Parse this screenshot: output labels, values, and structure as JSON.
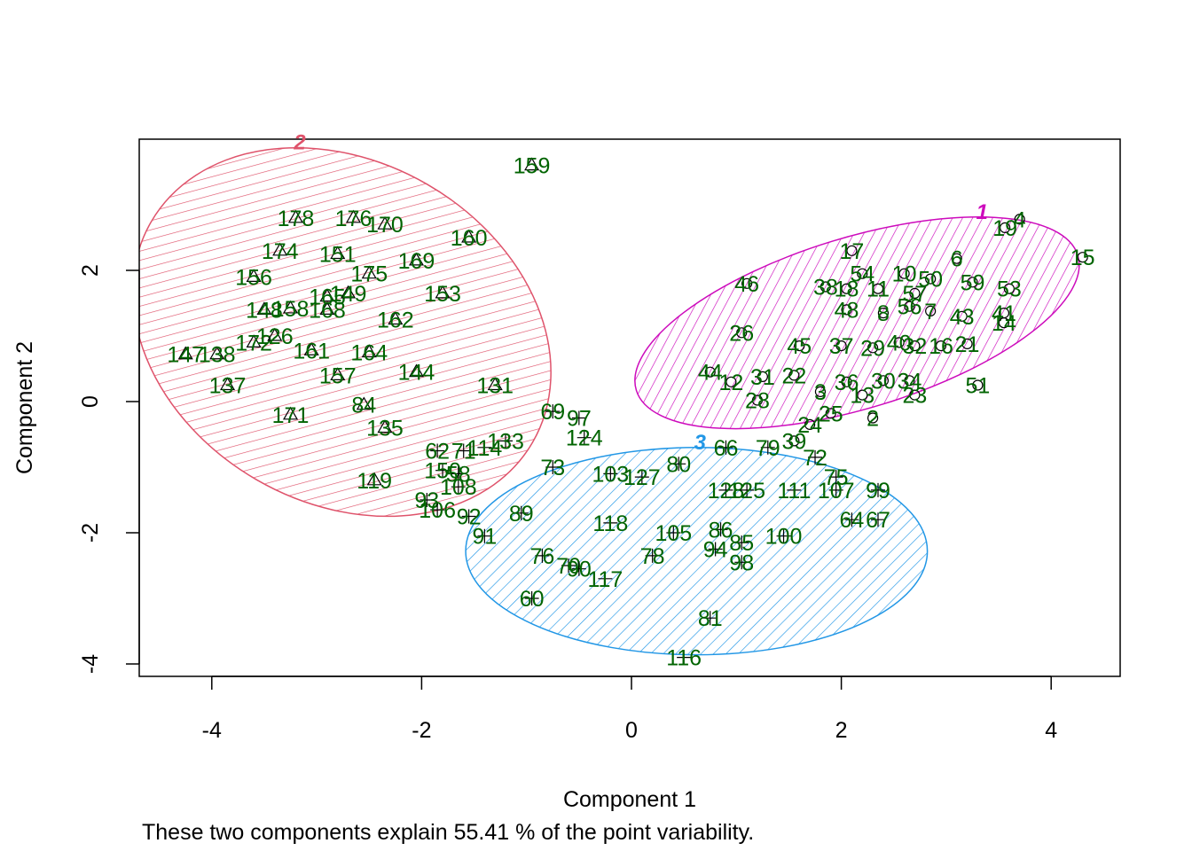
{
  "chart_data": {
    "type": "scatter",
    "title": "",
    "xlabel": "Component 1",
    "ylabel": "Component 2",
    "caption": "These two components explain 55.41 % of the point variability.",
    "xlim": [
      -4.7,
      4.7
    ],
    "ylim": [
      -4.2,
      4.1
    ],
    "xticks": [
      -4,
      -2,
      0,
      2,
      4
    ],
    "yticks": [
      -4,
      -2,
      0,
      2
    ],
    "grid": false,
    "colors": {
      "points": "#006400",
      "cluster1": "#CD0BBC",
      "cluster2": "#DF536B",
      "cluster3": "#2297E6",
      "axis": "#000000"
    },
    "clusters": [
      {
        "label": "1",
        "marker": "circle",
        "center": [
          2.15,
          1.2
        ],
        "rx": 2.2,
        "ry": 1.3,
        "angle_deg": 17,
        "color": "#CD0BBC"
      },
      {
        "label": "2",
        "marker": "triangle",
        "center": [
          -2.76,
          1.06
        ],
        "rx": 2.1,
        "ry": 2.6,
        "angle_deg": -30,
        "color": "#DF536B"
      },
      {
        "label": "3",
        "marker": "plus",
        "center": [
          0.62,
          -2.28
        ],
        "rx": 2.2,
        "ry": 1.58,
        "angle_deg": 0,
        "color": "#2297E6"
      }
    ],
    "points": [
      {
        "id": "4",
        "x": 3.7,
        "y": 2.78,
        "c": 1
      },
      {
        "id": "19",
        "x": 3.56,
        "y": 2.65,
        "c": 1
      },
      {
        "id": "15",
        "x": 4.3,
        "y": 2.2,
        "c": 1
      },
      {
        "id": "17",
        "x": 2.1,
        "y": 2.3,
        "c": 1
      },
      {
        "id": "6",
        "x": 3.1,
        "y": 2.18,
        "c": 1
      },
      {
        "id": "46",
        "x": 1.1,
        "y": 1.8,
        "c": 1
      },
      {
        "id": "54",
        "x": 2.2,
        "y": 1.95,
        "c": 1
      },
      {
        "id": "10",
        "x": 2.6,
        "y": 1.95,
        "c": 1
      },
      {
        "id": "50",
        "x": 2.85,
        "y": 1.87,
        "c": 1
      },
      {
        "id": "59",
        "x": 3.25,
        "y": 1.82,
        "c": 1
      },
      {
        "id": "53",
        "x": 3.6,
        "y": 1.72,
        "c": 1
      },
      {
        "id": "38",
        "x": 1.85,
        "y": 1.75,
        "c": 1
      },
      {
        "id": "18",
        "x": 2.05,
        "y": 1.72,
        "c": 1
      },
      {
        "id": "11",
        "x": 2.35,
        "y": 1.72,
        "c": 1
      },
      {
        "id": "57",
        "x": 2.7,
        "y": 1.65,
        "c": 1
      },
      {
        "id": "43",
        "x": 3.15,
        "y": 1.3,
        "c": 1
      },
      {
        "id": "41",
        "x": 3.55,
        "y": 1.35,
        "c": 1
      },
      {
        "id": "14",
        "x": 3.55,
        "y": 1.2,
        "c": 1
      },
      {
        "id": "48",
        "x": 2.05,
        "y": 1.4,
        "c": 1
      },
      {
        "id": "8",
        "x": 2.4,
        "y": 1.35,
        "c": 1
      },
      {
        "id": "56",
        "x": 2.65,
        "y": 1.45,
        "c": 1
      },
      {
        "id": "7",
        "x": 2.85,
        "y": 1.38,
        "c": 1
      },
      {
        "id": "26",
        "x": 1.05,
        "y": 1.05,
        "c": 1
      },
      {
        "id": "45",
        "x": 1.6,
        "y": 0.85,
        "c": 1
      },
      {
        "id": "37",
        "x": 2.0,
        "y": 0.85,
        "c": 1
      },
      {
        "id": "29",
        "x": 2.3,
        "y": 0.82,
        "c": 1
      },
      {
        "id": "40",
        "x": 2.55,
        "y": 0.9,
        "c": 1
      },
      {
        "id": "32",
        "x": 2.7,
        "y": 0.85,
        "c": 1
      },
      {
        "id": "16",
        "x": 2.95,
        "y": 0.85,
        "c": 1
      },
      {
        "id": "21",
        "x": 3.2,
        "y": 0.88,
        "c": 1
      },
      {
        "id": "44",
        "x": 0.75,
        "y": 0.45,
        "c": 1
      },
      {
        "id": "12",
        "x": 0.95,
        "y": 0.3,
        "c": 1
      },
      {
        "id": "31",
        "x": 1.25,
        "y": 0.38,
        "c": 1
      },
      {
        "id": "22",
        "x": 1.55,
        "y": 0.4,
        "c": 1
      },
      {
        "id": "36",
        "x": 2.05,
        "y": 0.3,
        "c": 1
      },
      {
        "id": "30",
        "x": 2.4,
        "y": 0.32,
        "c": 1
      },
      {
        "id": "34",
        "x": 2.65,
        "y": 0.32,
        "c": 1
      },
      {
        "id": "51",
        "x": 3.3,
        "y": 0.25,
        "c": 1
      },
      {
        "id": "3",
        "x": 1.8,
        "y": 0.15,
        "c": 1
      },
      {
        "id": "13",
        "x": 2.2,
        "y": 0.1,
        "c": 1
      },
      {
        "id": "23",
        "x": 2.7,
        "y": 0.1,
        "c": 1
      },
      {
        "id": "28",
        "x": 1.2,
        "y": 0.02,
        "c": 1
      },
      {
        "id": "25",
        "x": 1.9,
        "y": -0.18,
        "c": 1
      },
      {
        "id": "2",
        "x": 2.3,
        "y": -0.25,
        "c": 1
      },
      {
        "id": "24",
        "x": 1.7,
        "y": -0.35,
        "c": 1
      },
      {
        "id": "39",
        "x": 1.55,
        "y": -0.6,
        "c": 1
      },
      {
        "id": "159",
        "x": -0.95,
        "y": 3.6,
        "c": 2
      },
      {
        "id": "178",
        "x": -3.2,
        "y": 2.8,
        "c": 2
      },
      {
        "id": "176",
        "x": -2.65,
        "y": 2.8,
        "c": 2
      },
      {
        "id": "170",
        "x": -2.35,
        "y": 2.7,
        "c": 2
      },
      {
        "id": "160",
        "x": -1.55,
        "y": 2.5,
        "c": 2
      },
      {
        "id": "174",
        "x": -3.35,
        "y": 2.3,
        "c": 2
      },
      {
        "id": "151",
        "x": -2.8,
        "y": 2.25,
        "c": 2
      },
      {
        "id": "169",
        "x": -2.05,
        "y": 2.15,
        "c": 2
      },
      {
        "id": "156",
        "x": -3.6,
        "y": 1.9,
        "c": 2
      },
      {
        "id": "175",
        "x": -2.5,
        "y": 1.95,
        "c": 2
      },
      {
        "id": "165",
        "x": -2.9,
        "y": 1.6,
        "c": 2
      },
      {
        "id": "149",
        "x": -2.7,
        "y": 1.65,
        "c": 2
      },
      {
        "id": "153",
        "x": -1.8,
        "y": 1.65,
        "c": 2
      },
      {
        "id": "148",
        "x": -3.5,
        "y": 1.4,
        "c": 2
      },
      {
        "id": "158",
        "x": -3.25,
        "y": 1.42,
        "c": 2
      },
      {
        "id": "168",
        "x": -2.9,
        "y": 1.4,
        "c": 2
      },
      {
        "id": "162",
        "x": -2.25,
        "y": 1.25,
        "c": 2
      },
      {
        "id": "172",
        "x": -3.6,
        "y": 0.9,
        "c": 2
      },
      {
        "id": "126",
        "x": -3.4,
        "y": 1.0,
        "c": 2
      },
      {
        "id": "147",
        "x": -4.25,
        "y": 0.72,
        "c": 2
      },
      {
        "id": "138",
        "x": -3.95,
        "y": 0.72,
        "c": 2
      },
      {
        "id": "161",
        "x": -3.05,
        "y": 0.78,
        "c": 2
      },
      {
        "id": "164",
        "x": -2.5,
        "y": 0.75,
        "c": 2
      },
      {
        "id": "157",
        "x": -2.8,
        "y": 0.4,
        "c": 2
      },
      {
        "id": "144",
        "x": -2.05,
        "y": 0.45,
        "c": 2
      },
      {
        "id": "137",
        "x": -3.85,
        "y": 0.25,
        "c": 2
      },
      {
        "id": "131",
        "x": -1.3,
        "y": 0.25,
        "c": 2
      },
      {
        "id": "84",
        "x": -2.55,
        "y": -0.05,
        "c": 2
      },
      {
        "id": "171",
        "x": -3.25,
        "y": -0.2,
        "c": 2
      },
      {
        "id": "135",
        "x": -2.35,
        "y": -0.4,
        "c": 2
      },
      {
        "id": "119",
        "x": -2.45,
        "y": -1.2,
        "c": 2
      },
      {
        "id": "69",
        "x": -0.75,
        "y": -0.15,
        "c": 3
      },
      {
        "id": "97",
        "x": -0.5,
        "y": -0.25,
        "c": 3
      },
      {
        "id": "124",
        "x": -0.45,
        "y": -0.55,
        "c": 3
      },
      {
        "id": "133",
        "x": -1.2,
        "y": -0.6,
        "c": 3
      },
      {
        "id": "114",
        "x": -1.4,
        "y": -0.7,
        "c": 3
      },
      {
        "id": "62",
        "x": -1.85,
        "y": -0.75,
        "c": 3
      },
      {
        "id": "71",
        "x": -1.6,
        "y": -0.75,
        "c": 3
      },
      {
        "id": "73",
        "x": -0.75,
        "y": -1.0,
        "c": 3
      },
      {
        "id": "80",
        "x": 0.45,
        "y": -0.95,
        "c": 3
      },
      {
        "id": "103",
        "x": -0.2,
        "y": -1.1,
        "c": 3
      },
      {
        "id": "127",
        "x": 0.1,
        "y": -1.15,
        "c": 3
      },
      {
        "id": "150",
        "x": -1.8,
        "y": -1.05,
        "c": 3
      },
      {
        "id": "58",
        "x": -1.65,
        "y": -1.1,
        "c": 3
      },
      {
        "id": "108",
        "x": -1.65,
        "y": -1.3,
        "c": 3
      },
      {
        "id": "93",
        "x": -1.95,
        "y": -1.5,
        "c": 3
      },
      {
        "id": "106",
        "x": -1.85,
        "y": -1.65,
        "c": 3
      },
      {
        "id": "92",
        "x": -1.55,
        "y": -1.75,
        "c": 3
      },
      {
        "id": "89",
        "x": -1.05,
        "y": -1.7,
        "c": 3
      },
      {
        "id": "91",
        "x": -1.4,
        "y": -2.05,
        "c": 3
      },
      {
        "id": "128",
        "x": 0.9,
        "y": -1.35,
        "c": 3
      },
      {
        "id": "125",
        "x": 1.1,
        "y": -1.35,
        "c": 3
      },
      {
        "id": "111",
        "x": 1.55,
        "y": -1.35,
        "c": 3
      },
      {
        "id": "107",
        "x": 1.95,
        "y": -1.35,
        "c": 3
      },
      {
        "id": "99",
        "x": 2.35,
        "y": -1.35,
        "c": 3
      },
      {
        "id": "75",
        "x": 1.95,
        "y": -1.15,
        "c": 3
      },
      {
        "id": "66",
        "x": 0.9,
        "y": -0.7,
        "c": 3
      },
      {
        "id": "79",
        "x": 1.3,
        "y": -0.7,
        "c": 3
      },
      {
        "id": "72",
        "x": 1.75,
        "y": -0.85,
        "c": 3
      },
      {
        "id": "64",
        "x": 2.1,
        "y": -1.8,
        "c": 3
      },
      {
        "id": "67",
        "x": 2.35,
        "y": -1.8,
        "c": 3
      },
      {
        "id": "118",
        "x": -0.2,
        "y": -1.85,
        "c": 3
      },
      {
        "id": "105",
        "x": 0.4,
        "y": -2.0,
        "c": 3
      },
      {
        "id": "86",
        "x": 0.85,
        "y": -1.95,
        "c": 3
      },
      {
        "id": "85",
        "x": 1.05,
        "y": -2.15,
        "c": 3
      },
      {
        "id": "100",
        "x": 1.45,
        "y": -2.05,
        "c": 3
      },
      {
        "id": "76",
        "x": -0.85,
        "y": -2.35,
        "c": 3
      },
      {
        "id": "70",
        "x": -0.6,
        "y": -2.5,
        "c": 3
      },
      {
        "id": "90",
        "x": -0.5,
        "y": -2.55,
        "c": 3
      },
      {
        "id": "117",
        "x": -0.25,
        "y": -2.7,
        "c": 3
      },
      {
        "id": "78",
        "x": 0.2,
        "y": -2.35,
        "c": 3
      },
      {
        "id": "94",
        "x": 0.8,
        "y": -2.25,
        "c": 3
      },
      {
        "id": "98",
        "x": 1.05,
        "y": -2.45,
        "c": 3
      },
      {
        "id": "60",
        "x": -0.95,
        "y": -3.0,
        "c": 3
      },
      {
        "id": "81",
        "x": 0.75,
        "y": -3.3,
        "c": 3
      },
      {
        "id": "116",
        "x": 0.5,
        "y": -3.9,
        "c": 3
      }
    ]
  }
}
